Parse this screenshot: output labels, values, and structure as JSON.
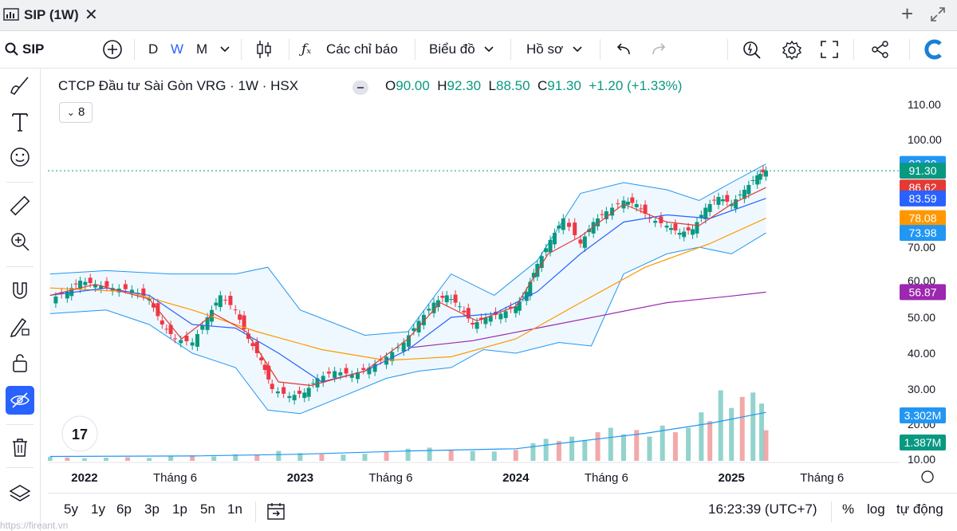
{
  "window": {
    "title": "SIP (1W)"
  },
  "toolbar": {
    "symbol": "SIP",
    "intervals": [
      "D",
      "W",
      "M"
    ],
    "active_interval": "W",
    "indicators_label": "Các chỉ báo",
    "chart_label": "Biểu đồ",
    "profile_label": "Hồ sơ"
  },
  "bottom": {
    "ranges": [
      "5y",
      "1y",
      "6p",
      "3p",
      "1p",
      "5n",
      "1n"
    ],
    "time": "16:23:39 (UTC+7)",
    "percent": "%",
    "log": "log",
    "auto": "tự động"
  },
  "watermark": "https://fireant.vn",
  "indicator_count": "8",
  "chart_data": {
    "type": "candlestick",
    "title": "CTCP Đầu tư Sài Gòn VRG · 1W · HSX",
    "ohlc": {
      "o": "90.00",
      "h": "92.30",
      "l": "88.50",
      "c": "91.30",
      "chg": "+1.20 (+1.33%)"
    },
    "ohlc_labels": {
      "o": "O",
      "h": "H",
      "l": "L",
      "c": "C"
    },
    "y_range": [
      10,
      112
    ],
    "y_ticks": [
      "110.00",
      "100.00",
      "70.00",
      "60.00",
      "50.00",
      "40.00",
      "30.00",
      "20.00",
      "10.00"
    ],
    "x_ticks": [
      "2022",
      "Tháng 6",
      "2023",
      "Tháng 6",
      "2024",
      "Tháng 6",
      "2025",
      "Tháng 6"
    ],
    "x_tick_dates": [
      2022.0,
      2022.42,
      2023.0,
      2023.42,
      2024.0,
      2024.42,
      2025.0,
      2025.42
    ],
    "x_range": [
      2021.83,
      2025.75
    ],
    "price_labels": [
      {
        "text": "93.20",
        "value": 93.2,
        "color": "#2196f3"
      },
      {
        "text": "91.30",
        "value": 91.3,
        "color": "#089981"
      },
      {
        "text": "86.62",
        "value": 86.62,
        "color": "#e53935"
      },
      {
        "text": "83.59",
        "value": 83.59,
        "color": "#2962ff"
      },
      {
        "text": "78.08",
        "value": 78.08,
        "color": "#ff9800"
      },
      {
        "text": "73.98",
        "value": 73.98,
        "color": "#2196f3"
      },
      {
        "text": "56.87",
        "value": 56.87,
        "color": "#9c27b0"
      }
    ],
    "volume_labels": [
      {
        "text": "3.302M",
        "color": "#2196f3"
      },
      {
        "text": "1.387M",
        "color": "#089981"
      }
    ],
    "close_path": [
      [
        2021.84,
        55
      ],
      [
        2021.92,
        57
      ],
      [
        2021.98,
        60
      ],
      [
        2022.05,
        59
      ],
      [
        2022.13,
        58
      ],
      [
        2022.22,
        57.5
      ],
      [
        2022.3,
        55
      ],
      [
        2022.36,
        48
      ],
      [
        2022.42,
        44
      ],
      [
        2022.5,
        43
      ],
      [
        2022.57,
        50
      ],
      [
        2022.63,
        56
      ],
      [
        2022.7,
        52
      ],
      [
        2022.76,
        44
      ],
      [
        2022.82,
        38
      ],
      [
        2022.87,
        30
      ],
      [
        2022.95,
        28
      ],
      [
        2023.02,
        29
      ],
      [
        2023.08,
        33
      ],
      [
        2023.16,
        35
      ],
      [
        2023.24,
        34
      ],
      [
        2023.32,
        36
      ],
      [
        2023.4,
        39
      ],
      [
        2023.48,
        43
      ],
      [
        2023.55,
        49
      ],
      [
        2023.62,
        54
      ],
      [
        2023.68,
        56
      ],
      [
        2023.74,
        53
      ],
      [
        2023.8,
        48
      ],
      [
        2023.86,
        50
      ],
      [
        2023.93,
        51
      ],
      [
        2024.0,
        53
      ],
      [
        2024.05,
        57
      ],
      [
        2024.1,
        65
      ],
      [
        2024.16,
        72
      ],
      [
        2024.22,
        78
      ],
      [
        2024.3,
        71
      ],
      [
        2024.36,
        77
      ],
      [
        2024.42,
        80
      ],
      [
        2024.5,
        83
      ],
      [
        2024.56,
        82
      ],
      [
        2024.62,
        78
      ],
      [
        2024.7,
        76
      ],
      [
        2024.76,
        74
      ],
      [
        2024.82,
        75
      ],
      [
        2024.88,
        81
      ],
      [
        2024.94,
        84
      ],
      [
        2025.0,
        82
      ],
      [
        2025.06,
        86
      ],
      [
        2025.12,
        90
      ],
      [
        2025.16,
        91.3
      ]
    ],
    "lines": [
      {
        "name": "ma-purple",
        "color": "#9c27b0",
        "points": [
          [
            2023.5,
            41.5
          ],
          [
            2023.8,
            43.5
          ],
          [
            2024.1,
            47
          ],
          [
            2024.4,
            50.5
          ],
          [
            2024.7,
            54
          ],
          [
            2025.0,
            55.8
          ],
          [
            2025.16,
            56.87
          ]
        ]
      },
      {
        "name": "ma-orange",
        "color": "#ff9800",
        "points": [
          [
            2021.84,
            58
          ],
          [
            2022.2,
            57
          ],
          [
            2022.5,
            52
          ],
          [
            2022.8,
            46
          ],
          [
            2023.1,
            41
          ],
          [
            2023.4,
            38
          ],
          [
            2023.7,
            39
          ],
          [
            2024.0,
            44
          ],
          [
            2024.3,
            54
          ],
          [
            2024.6,
            64
          ],
          [
            2024.9,
            71
          ],
          [
            2025.16,
            78.08
          ]
        ]
      },
      {
        "name": "ma-blue",
        "color": "#2962ff",
        "points": [
          [
            2021.84,
            56
          ],
          [
            2022.1,
            58
          ],
          [
            2022.3,
            56
          ],
          [
            2022.5,
            48
          ],
          [
            2022.7,
            47
          ],
          [
            2022.9,
            40
          ],
          [
            2023.1,
            32
          ],
          [
            2023.3,
            35
          ],
          [
            2023.5,
            41
          ],
          [
            2023.7,
            50
          ],
          [
            2023.9,
            51
          ],
          [
            2024.1,
            57
          ],
          [
            2024.3,
            68
          ],
          [
            2024.5,
            77
          ],
          [
            2024.7,
            79
          ],
          [
            2024.9,
            78
          ],
          [
            2025.16,
            83.59
          ]
        ]
      },
      {
        "name": "ma-red",
        "color": "#e53935",
        "points": [
          [
            2021.84,
            56
          ],
          [
            2022.05,
            59
          ],
          [
            2022.3,
            55
          ],
          [
            2022.45,
            44
          ],
          [
            2022.6,
            51
          ],
          [
            2022.75,
            46
          ],
          [
            2022.9,
            32
          ],
          [
            2023.05,
            31
          ],
          [
            2023.3,
            35
          ],
          [
            2023.5,
            44
          ],
          [
            2023.65,
            54
          ],
          [
            2023.82,
            49
          ],
          [
            2024.0,
            53
          ],
          [
            2024.15,
            68
          ],
          [
            2024.3,
            73
          ],
          [
            2024.5,
            82
          ],
          [
            2024.7,
            77
          ],
          [
            2024.85,
            76
          ],
          [
            2025.0,
            82
          ],
          [
            2025.16,
            86.62
          ]
        ]
      }
    ],
    "bollinger": {
      "upper": [
        [
          2021.84,
          62
        ],
        [
          2022.1,
          63
        ],
        [
          2022.4,
          62
        ],
        [
          2022.7,
          62
        ],
        [
          2022.85,
          64
        ],
        [
          2023.0,
          52
        ],
        [
          2023.3,
          45
        ],
        [
          2023.5,
          46
        ],
        [
          2023.7,
          62
        ],
        [
          2023.9,
          56
        ],
        [
          2024.1,
          66
        ],
        [
          2024.3,
          85
        ],
        [
          2024.5,
          88
        ],
        [
          2024.7,
          86
        ],
        [
          2024.85,
          83
        ],
        [
          2025.0,
          88
        ],
        [
          2025.16,
          93.2
        ]
      ],
      "lower": [
        [
          2021.84,
          51
        ],
        [
          2022.1,
          52
        ],
        [
          2022.3,
          48
        ],
        [
          2022.5,
          40
        ],
        [
          2022.7,
          36
        ],
        [
          2022.85,
          24
        ],
        [
          2023.0,
          23
        ],
        [
          2023.2,
          28
        ],
        [
          2023.4,
          33
        ],
        [
          2023.55,
          35
        ],
        [
          2023.7,
          36
        ],
        [
          2023.85,
          41
        ],
        [
          2024.0,
          40
        ],
        [
          2024.2,
          43
        ],
        [
          2024.35,
          42
        ],
        [
          2024.5,
          62
        ],
        [
          2024.7,
          68
        ],
        [
          2024.85,
          70
        ],
        [
          2025.0,
          68
        ],
        [
          2025.16,
          73.98
        ]
      ]
    },
    "volume_max": 3.302,
    "volume_scale_range": [
      0,
      5.5
    ],
    "volume": [
      [
        2021.84,
        0.18
      ],
      [
        2021.92,
        0.15
      ],
      [
        2022.0,
        0.12
      ],
      [
        2022.1,
        0.14
      ],
      [
        2022.2,
        0.16
      ],
      [
        2022.3,
        0.13
      ],
      [
        2022.4,
        0.22
      ],
      [
        2022.5,
        0.25
      ],
      [
        2022.6,
        0.2
      ],
      [
        2022.7,
        0.3
      ],
      [
        2022.8,
        0.28
      ],
      [
        2022.9,
        0.45
      ],
      [
        2023.0,
        0.35
      ],
      [
        2023.1,
        0.3
      ],
      [
        2023.2,
        0.28
      ],
      [
        2023.3,
        0.32
      ],
      [
        2023.4,
        0.4
      ],
      [
        2023.5,
        0.55
      ],
      [
        2023.6,
        0.6
      ],
      [
        2023.7,
        0.5
      ],
      [
        2023.8,
        0.45
      ],
      [
        2023.9,
        0.42
      ],
      [
        2024.0,
        0.5
      ],
      [
        2024.08,
        0.8
      ],
      [
        2024.14,
        1.0
      ],
      [
        2024.2,
        0.9
      ],
      [
        2024.26,
        1.1
      ],
      [
        2024.32,
        0.95
      ],
      [
        2024.38,
        1.3
      ],
      [
        2024.44,
        1.5
      ],
      [
        2024.5,
        1.2
      ],
      [
        2024.56,
        1.4
      ],
      [
        2024.62,
        1.1
      ],
      [
        2024.68,
        1.6
      ],
      [
        2024.74,
        1.3
      ],
      [
        2024.8,
        1.5
      ],
      [
        2024.86,
        2.2
      ],
      [
        2024.9,
        1.8
      ],
      [
        2024.95,
        3.2
      ],
      [
        2025.0,
        2.4
      ],
      [
        2025.05,
        2.9
      ],
      [
        2025.1,
        3.1
      ],
      [
        2025.14,
        2.6
      ],
      [
        2025.16,
        1.387
      ]
    ],
    "volume_ma": [
      [
        2021.84,
        0.2
      ],
      [
        2022.5,
        0.22
      ],
      [
        2023.0,
        0.3
      ],
      [
        2023.5,
        0.45
      ],
      [
        2024.0,
        0.55
      ],
      [
        2024.3,
        0.9
      ],
      [
        2024.6,
        1.25
      ],
      [
        2024.9,
        1.7
      ],
      [
        2025.16,
        2.2
      ]
    ]
  }
}
